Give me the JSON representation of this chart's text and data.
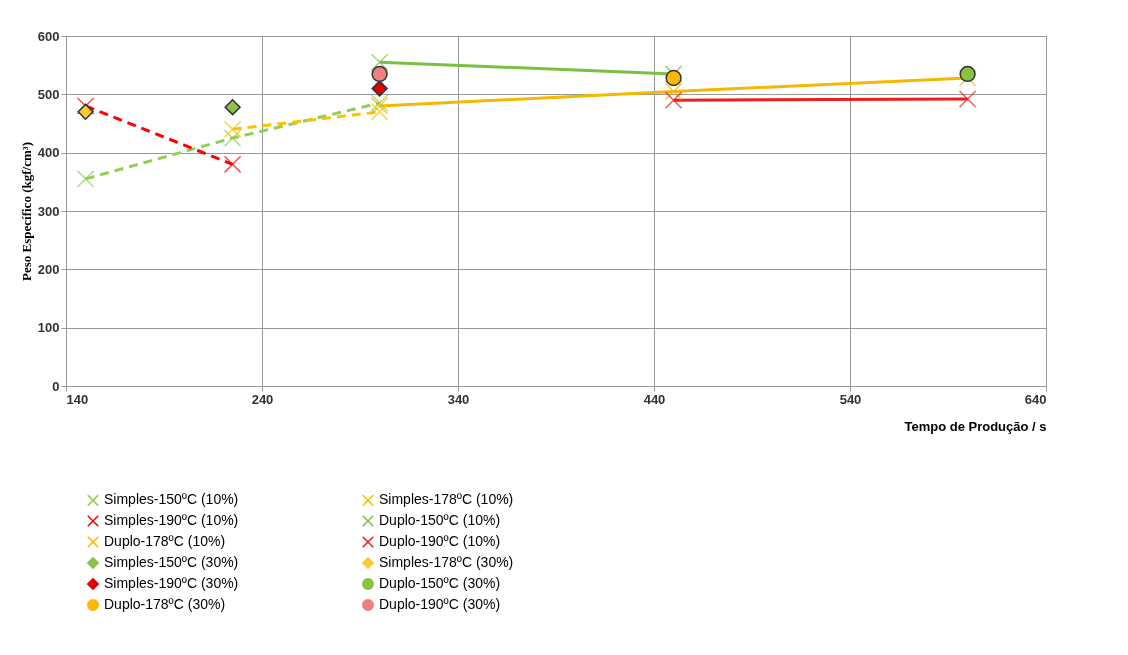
{
  "chart_data": {
    "type": "line",
    "xlabel": "Tempo de Produção  / s",
    "ylabel": "Peso Específico  (kgf/cm³)",
    "xlim": [
      140,
      640
    ],
    "xticks": [
      140,
      240,
      340,
      440,
      540,
      640
    ],
    "ylim": [
      0,
      600
    ],
    "yticks": [
      0,
      100,
      200,
      300,
      400,
      500,
      600
    ],
    "grid": true,
    "legend": "bottom",
    "series": [
      {
        "name": "Simples-150ºC (10%)",
        "line_style": "dashed",
        "marker": "cross",
        "color": "#92d050",
        "x": [
          150,
          225,
          300
        ],
        "values": [
          355,
          425,
          485
        ]
      },
      {
        "name": "Simples-178ºC (10%)",
        "line_style": "dashed",
        "marker": "cross",
        "color": "#ffc000",
        "x": [
          225,
          300
        ],
        "values": [
          440,
          470
        ]
      },
      {
        "name": "Simples-190ºC (10%)",
        "line_style": "dashed",
        "marker": "cross",
        "color": "#ff0000",
        "x": [
          150,
          225
        ],
        "values": [
          480,
          380
        ]
      },
      {
        "name": "Duplo-150ºC (10%)",
        "line_style": "solid",
        "marker": "cross",
        "color": "#7ac143",
        "x": [
          300,
          450
        ],
        "values": [
          555,
          535
        ]
      },
      {
        "name": "Duplo-178ºC (10%)",
        "line_style": "solid",
        "marker": "cross",
        "color": "#f5b800",
        "x": [
          300,
          450,
          600
        ],
        "values": [
          480,
          505,
          528
        ]
      },
      {
        "name": "Duplo-190ºC (10%)",
        "line_style": "solid",
        "marker": "cross",
        "color": "#ee1c1c",
        "x": [
          450,
          600
        ],
        "values": [
          490,
          492
        ]
      },
      {
        "name": "Simples-150ºC (30%)",
        "type": "scatter",
        "marker": "diamond",
        "color": "#8bc34a",
        "x": [
          225
        ],
        "values": [
          478
        ]
      },
      {
        "name": "Simples-178ºC (30%)",
        "type": "scatter",
        "marker": "diamond",
        "color": "#ffc933",
        "x": [
          150
        ],
        "values": [
          470
        ]
      },
      {
        "name": "Simples-190ºC (30%)",
        "type": "scatter",
        "marker": "diamond",
        "color": "#e00000",
        "x": [
          300
        ],
        "values": [
          510
        ]
      },
      {
        "name": "Duplo-150ºC (30%)",
        "type": "scatter",
        "marker": "circle",
        "color": "#86c440",
        "x": [
          600
        ],
        "values": [
          535
        ]
      },
      {
        "name": "Duplo-178ºC (30%)",
        "type": "scatter",
        "marker": "circle",
        "color": "#ffb800",
        "x": [
          450
        ],
        "values": [
          528
        ]
      },
      {
        "name": "Duplo-190ºC (30%)",
        "type": "scatter",
        "marker": "circle",
        "color": "#f08080",
        "x": [
          300
        ],
        "values": [
          535
        ]
      }
    ]
  }
}
